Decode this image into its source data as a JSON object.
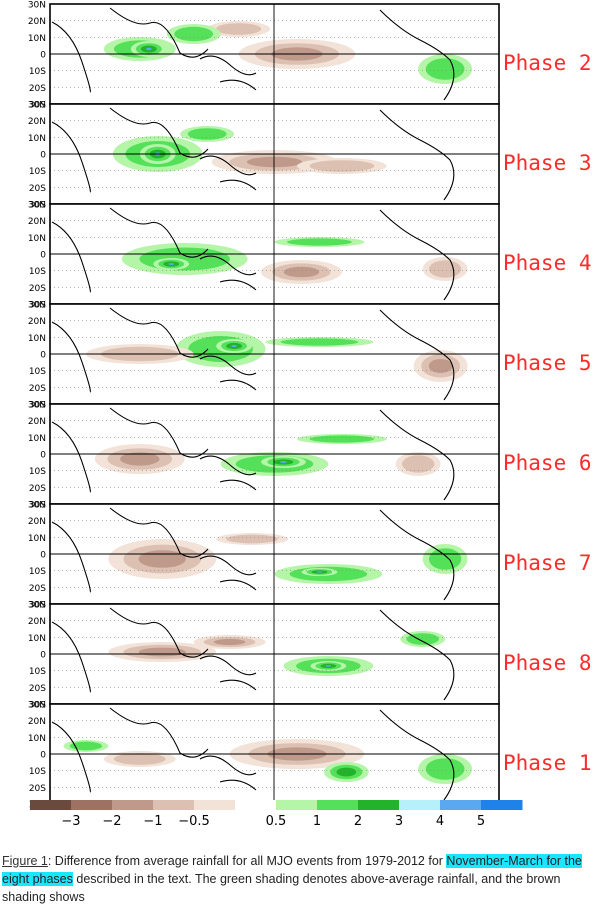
{
  "latitude_labels": [
    "30N",
    "20N",
    "10N",
    "0",
    "10S",
    "20S",
    "30S"
  ],
  "panels": [
    {
      "label": "Phase 2"
    },
    {
      "label": "Phase 3"
    },
    {
      "label": "Phase 4"
    },
    {
      "label": "Phase 5"
    },
    {
      "label": "Phase 6"
    },
    {
      "label": "Phase 7"
    },
    {
      "label": "Phase 8"
    },
    {
      "label": "Phase 1"
    }
  ],
  "colorbar": {
    "ticks": [
      "−3",
      "−2",
      "−1",
      "−0.5",
      "0.5",
      "1",
      "2",
      "3",
      "4",
      "5"
    ],
    "colors": [
      "#6b4a3e",
      "#9d7263",
      "#bf9a8a",
      "#dcc0b2",
      "#f2e2d8",
      "#ffffff",
      "#b4f5a8",
      "#55e05a",
      "#22b32a",
      "#b6f0fa",
      "#5aa8f0",
      "#1e82e8"
    ]
  },
  "colors": {
    "phase_label": "#ff2a2a",
    "highlight": "#19e6ff",
    "wet": "#22b32a",
    "dry": "#9d7263"
  },
  "caption": {
    "figure_link": "Figure 1",
    "text_before": ": Difference from average rainfall for all MJO events from 1979-2012 for ",
    "highlight": "November-March for the eight phases",
    "text_after": " described in the text. The green shading denotes above-average rainfall, and the brown shading shows"
  }
}
